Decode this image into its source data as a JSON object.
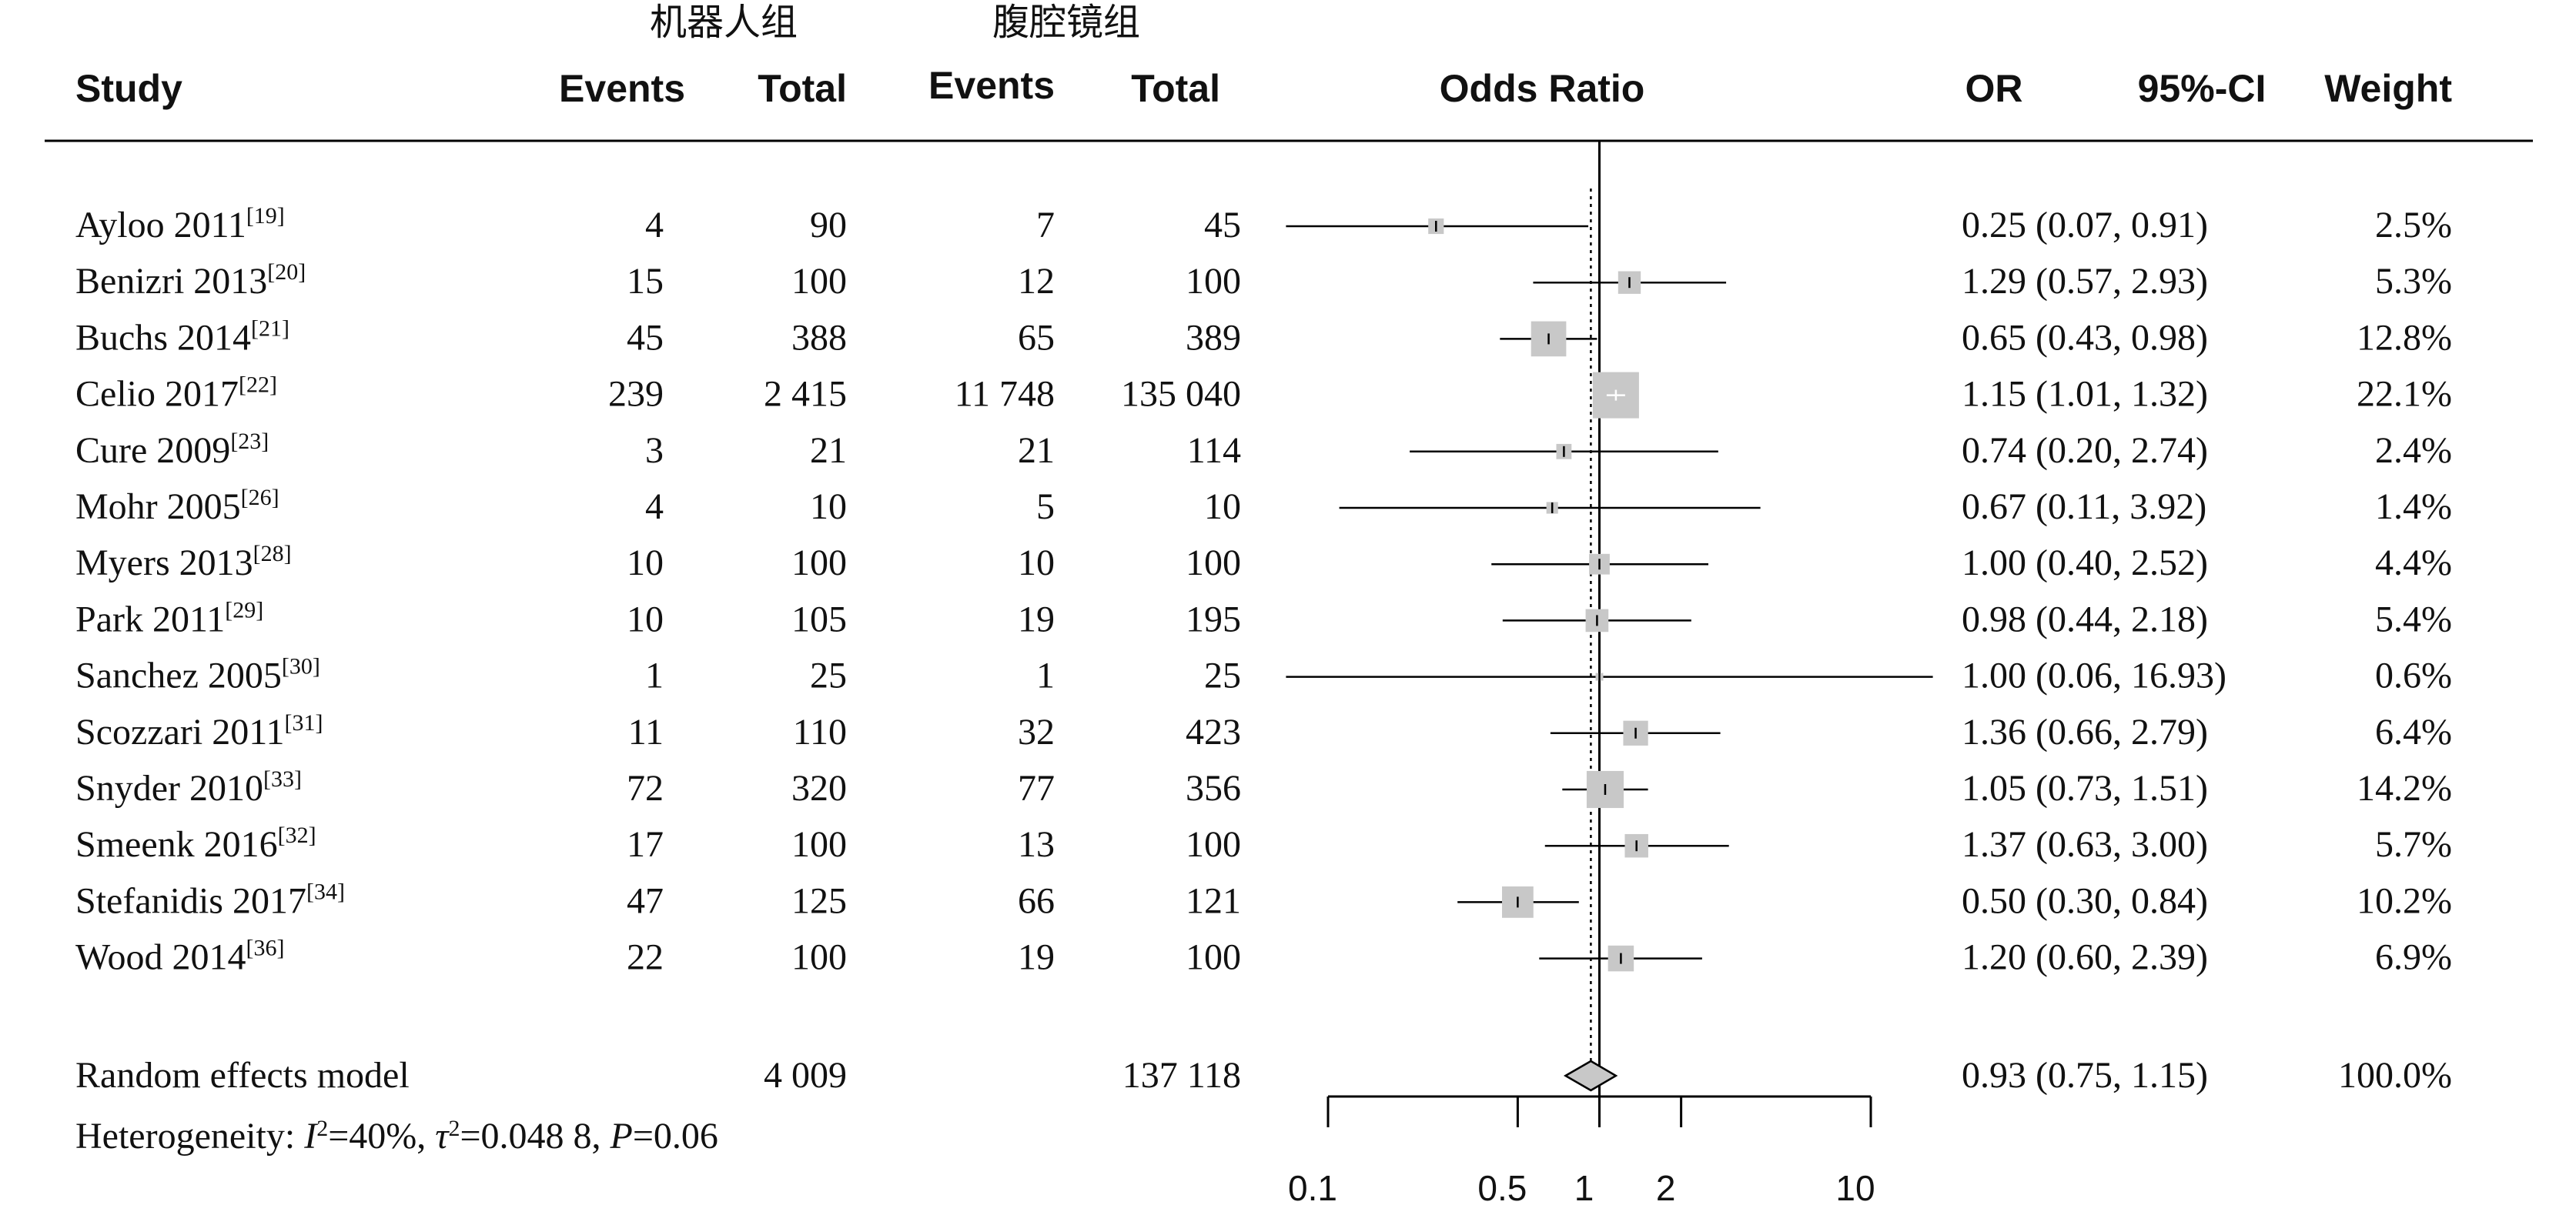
{
  "headers": {
    "group_robot": "机器人组",
    "group_lap": "腹腔镜组",
    "study": "Study",
    "events1": "Events",
    "total1": "Total",
    "events2": "Events",
    "total2": "Total",
    "odds_ratio": "Odds Ratio",
    "or": "OR",
    "ci": "95%-CI",
    "weight": "Weight"
  },
  "chart_data": {
    "type": "forest",
    "xscale": "log",
    "xlim": [
      0.1,
      10
    ],
    "ticks": [
      0.1,
      0.5,
      1,
      2,
      10
    ],
    "reference_line": 1,
    "pooled_line": 0.93,
    "studies": [
      {
        "name": "Ayloo 2011",
        "ref": "[19]",
        "e1": "4",
        "t1": "90",
        "e2": "7",
        "t2": "45",
        "or": 0.25,
        "lo": 0.07,
        "hi": 0.91,
        "ci_text": "0.25 (0.07, 0.91)",
        "w": 2.5,
        "weight_text": "2.5%"
      },
      {
        "name": "Benizri 2013",
        "ref": "[20]",
        "e1": "15",
        "t1": "100",
        "e2": "12",
        "t2": "100",
        "or": 1.29,
        "lo": 0.57,
        "hi": 2.93,
        "ci_text": "1.29 (0.57, 2.93)",
        "w": 5.3,
        "weight_text": "5.3%"
      },
      {
        "name": "Buchs 2014",
        "ref": "[21]",
        "e1": "45",
        "t1": "388",
        "e2": "65",
        "t2": "389",
        "or": 0.65,
        "lo": 0.43,
        "hi": 0.98,
        "ci_text": "0.65 (0.43, 0.98)",
        "w": 12.8,
        "weight_text": "12.8%"
      },
      {
        "name": "Celio 2017",
        "ref": "[22]",
        "e1": "239",
        "t1": "2 415",
        "e2": "11 748",
        "t2": "135 040",
        "or": 1.15,
        "lo": 1.01,
        "hi": 1.32,
        "ci_text": "1.15 (1.01, 1.32)",
        "w": 22.1,
        "weight_text": "22.1%"
      },
      {
        "name": "Cure 2009",
        "ref": "[23]",
        "e1": "3",
        "t1": "21",
        "e2": "21",
        "t2": "114",
        "or": 0.74,
        "lo": 0.2,
        "hi": 2.74,
        "ci_text": "0.74 (0.20, 2.74)",
        "w": 2.4,
        "weight_text": "2.4%"
      },
      {
        "name": "Mohr 2005",
        "ref": "[26]",
        "e1": "4",
        "t1": "10",
        "e2": "5",
        "t2": "10",
        "or": 0.67,
        "lo": 0.11,
        "hi": 3.92,
        "ci_text": "0.67 (0.11, 3.92)",
        "w": 1.4,
        "weight_text": "1.4%"
      },
      {
        "name": "Myers 2013",
        "ref": "[28]",
        "e1": "10",
        "t1": "100",
        "e2": "10",
        "t2": "100",
        "or": 1.0,
        "lo": 0.4,
        "hi": 2.52,
        "ci_text": "1.00 (0.40, 2.52)",
        "w": 4.4,
        "weight_text": "4.4%"
      },
      {
        "name": "Park 2011",
        "ref": "[29]",
        "e1": "10",
        "t1": "105",
        "e2": "19",
        "t2": "195",
        "or": 0.98,
        "lo": 0.44,
        "hi": 2.18,
        "ci_text": "0.98 (0.44, 2.18)",
        "w": 5.4,
        "weight_text": "5.4%"
      },
      {
        "name": "Sanchez 2005",
        "ref": "[30]",
        "e1": "1",
        "t1": "25",
        "e2": "1",
        "t2": "25",
        "or": 1.0,
        "lo": 0.06,
        "hi": 16.93,
        "ci_text": "1.00 (0.06, 16.93)",
        "w": 0.6,
        "weight_text": "0.6%"
      },
      {
        "name": "Scozzari 2011",
        "ref": "[31]",
        "e1": "11",
        "t1": "110",
        "e2": "32",
        "t2": "423",
        "or": 1.36,
        "lo": 0.66,
        "hi": 2.79,
        "ci_text": "1.36 (0.66, 2.79)",
        "w": 6.4,
        "weight_text": "6.4%"
      },
      {
        "name": "Snyder 2010",
        "ref": "[33]",
        "e1": "72",
        "t1": "320",
        "e2": "77",
        "t2": "356",
        "or": 1.05,
        "lo": 0.73,
        "hi": 1.51,
        "ci_text": "1.05 (0.73, 1.51)",
        "w": 14.2,
        "weight_text": "14.2%"
      },
      {
        "name": "Smeenk 2016",
        "ref": "[32]",
        "e1": "17",
        "t1": "100",
        "e2": "13",
        "t2": "100",
        "or": 1.37,
        "lo": 0.63,
        "hi": 3.0,
        "ci_text": "1.37 (0.63, 3.00)",
        "w": 5.7,
        "weight_text": "5.7%"
      },
      {
        "name": "Stefanidis 2017",
        "ref": "[34]",
        "e1": "47",
        "t1": "125",
        "e2": "66",
        "t2": "121",
        "or": 0.5,
        "lo": 0.3,
        "hi": 0.84,
        "ci_text": "0.50 (0.30, 0.84)",
        "w": 10.2,
        "weight_text": "10.2%"
      },
      {
        "name": "Wood 2014",
        "ref": "[36]",
        "e1": "22",
        "t1": "100",
        "e2": "19",
        "t2": "100",
        "or": 1.2,
        "lo": 0.6,
        "hi": 2.39,
        "ci_text": "1.20 (0.60, 2.39)",
        "w": 6.9,
        "weight_text": "6.9%"
      }
    ],
    "pooled": {
      "label": "Random effects model",
      "t1": "4 009",
      "t2": "137 118",
      "or": 0.93,
      "lo": 0.75,
      "hi": 1.15,
      "ci_text": "0.93 (0.75, 1.15)",
      "weight_text": "100.0%"
    },
    "heterogeneity": {
      "prefix": "Heterogeneity: ",
      "i2_label": "I",
      "i2_value": "=40%, ",
      "tau_label": "τ",
      "tau_value": "=0.048 8, ",
      "p_label": "P",
      "p_value": "=0.06"
    },
    "colors": {
      "box": "#c8c8c8",
      "line": "#000000",
      "diamond_fill": "#c8c8c8"
    }
  }
}
